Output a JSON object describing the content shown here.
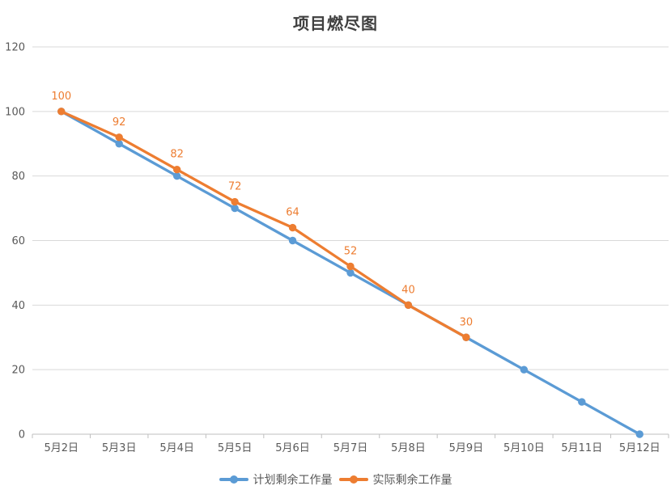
{
  "chart": {
    "title": "项目燃尽图"
  },
  "chart_data": {
    "type": "line",
    "title": "项目燃尽图",
    "categories": [
      "5月2日",
      "5月3日",
      "5月4日",
      "5月5日",
      "5月6日",
      "5月7日",
      "5月8日",
      "5月9日",
      "5月10日",
      "5月11日",
      "5月12日"
    ],
    "series": [
      {
        "name": "计划剩余工作量",
        "color": "#5B9BD5",
        "values": [
          100,
          90,
          80,
          70,
          60,
          50,
          40,
          30,
          20,
          10,
          0
        ],
        "show_data_labels": false
      },
      {
        "name": "实际剩余工作量",
        "color": "#ED7D31",
        "values": [
          100,
          92,
          82,
          72,
          64,
          52,
          40,
          30
        ],
        "show_data_labels": true,
        "data_labels": [
          "100",
          "92",
          "82",
          "72",
          "64",
          "52",
          "40",
          "30"
        ]
      }
    ],
    "xlabel": "",
    "ylabel": "",
    "ylim": [
      0,
      120
    ],
    "y_ticks": [
      0,
      20,
      40,
      60,
      80,
      100,
      120
    ],
    "grid": true,
    "legend_position": "bottom",
    "marker": "circle",
    "styles": {
      "grid_color": "#D9D9D9",
      "axis_line_color": "#BFBFBF",
      "axis_text_color": "#595959",
      "title_color": "#404040",
      "data_label_color": "#ED7D31",
      "background": "#FFFFFF"
    }
  }
}
